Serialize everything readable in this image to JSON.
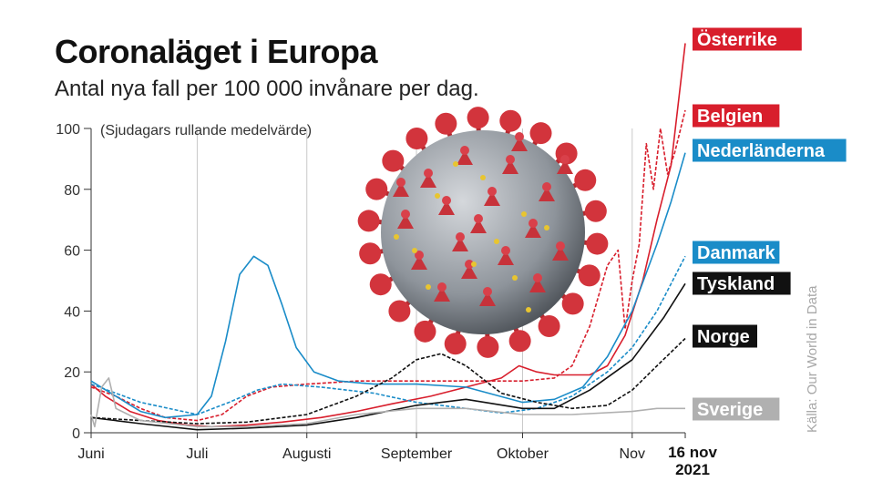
{
  "chart_data": {
    "type": "line",
    "title": "Coronaläget i Europa",
    "subtitle": "Antal nya fall per 100 000 invånare per dag.",
    "annotation": "(Sjudagars rullande medelvärde)",
    "source": "Källa: Our World in Data",
    "end_date": {
      "day": "16 nov",
      "year": "2021"
    },
    "x_ticks": [
      {
        "label": "Juni",
        "date": "2021-06-01"
      },
      {
        "label": "Juli",
        "date": "2021-07-01"
      },
      {
        "label": "Augusti",
        "date": "2021-08-01"
      },
      {
        "label": "September",
        "date": "2021-09-01"
      },
      {
        "label": "Oktober",
        "date": "2021-10-01"
      },
      {
        "label": "Nov",
        "date": "2021-11-01"
      }
    ],
    "y_ticks": [
      0,
      20,
      40,
      60,
      80,
      100
    ],
    "xlim": [
      "2021-06-01",
      "2021-11-16"
    ],
    "ylim": [
      0,
      100
    ],
    "grid": "vertical",
    "series": [
      {
        "name": "Österrike",
        "color": "#d81e2c",
        "dash": false,
        "points": [
          [
            "2021-06-01",
            16
          ],
          [
            "2021-06-05",
            12
          ],
          [
            "2021-06-12",
            7
          ],
          [
            "2021-06-20",
            4
          ],
          [
            "2021-06-28",
            2.5
          ],
          [
            "2021-07-05",
            2
          ],
          [
            "2021-07-15",
            2.5
          ],
          [
            "2021-07-25",
            3.5
          ],
          [
            "2021-08-05",
            5
          ],
          [
            "2021-08-15",
            7
          ],
          [
            "2021-08-25",
            9.5
          ],
          [
            "2021-09-05",
            12
          ],
          [
            "2021-09-15",
            15
          ],
          [
            "2021-09-25",
            18
          ],
          [
            "2021-09-30",
            22
          ],
          [
            "2021-10-05",
            20
          ],
          [
            "2021-10-10",
            19
          ],
          [
            "2021-10-20",
            19
          ],
          [
            "2021-10-25",
            22
          ],
          [
            "2021-10-30",
            32
          ],
          [
            "2021-11-04",
            50
          ],
          [
            "2021-11-08",
            70
          ],
          [
            "2021-11-12",
            88
          ],
          [
            "2021-11-16",
            128
          ]
        ]
      },
      {
        "name": "Belgien",
        "color": "#d81e2c",
        "dash": true,
        "points": [
          [
            "2021-06-01",
            15
          ],
          [
            "2021-06-08",
            12
          ],
          [
            "2021-06-15",
            8
          ],
          [
            "2021-06-22",
            5
          ],
          [
            "2021-07-01",
            4
          ],
          [
            "2021-07-08",
            6
          ],
          [
            "2021-07-15",
            12
          ],
          [
            "2021-07-22",
            15
          ],
          [
            "2021-08-01",
            16
          ],
          [
            "2021-08-15",
            17
          ],
          [
            "2021-09-01",
            17
          ],
          [
            "2021-09-15",
            17
          ],
          [
            "2021-10-01",
            17
          ],
          [
            "2021-10-10",
            18
          ],
          [
            "2021-10-15",
            22
          ],
          [
            "2021-10-20",
            35
          ],
          [
            "2021-10-25",
            55
          ],
          [
            "2021-10-28",
            60
          ],
          [
            "2021-10-30",
            34
          ],
          [
            "2021-11-01",
            50
          ],
          [
            "2021-11-03",
            62
          ],
          [
            "2021-11-05",
            95
          ],
          [
            "2021-11-07",
            80
          ],
          [
            "2021-11-09",
            100
          ],
          [
            "2021-11-11",
            85
          ],
          [
            "2021-11-13",
            92
          ],
          [
            "2021-11-16",
            106
          ]
        ]
      },
      {
        "name": "Nederländerna",
        "color": "#1a8cc8",
        "dash": false,
        "points": [
          [
            "2021-06-01",
            17
          ],
          [
            "2021-06-08",
            12
          ],
          [
            "2021-06-15",
            7
          ],
          [
            "2021-06-22",
            5
          ],
          [
            "2021-07-01",
            6
          ],
          [
            "2021-07-05",
            12
          ],
          [
            "2021-07-09",
            30
          ],
          [
            "2021-07-13",
            52
          ],
          [
            "2021-07-17",
            58
          ],
          [
            "2021-07-21",
            55
          ],
          [
            "2021-07-25",
            42
          ],
          [
            "2021-07-29",
            28
          ],
          [
            "2021-08-03",
            20
          ],
          [
            "2021-08-10",
            17
          ],
          [
            "2021-08-20",
            16
          ],
          [
            "2021-09-01",
            16
          ],
          [
            "2021-09-15",
            15
          ],
          [
            "2021-10-01",
            10
          ],
          [
            "2021-10-10",
            11
          ],
          [
            "2021-10-18",
            15
          ],
          [
            "2021-10-25",
            25
          ],
          [
            "2021-11-01",
            40
          ],
          [
            "2021-11-08",
            62
          ],
          [
            "2021-11-12",
            76
          ],
          [
            "2021-11-16",
            92
          ]
        ]
      },
      {
        "name": "Danmark",
        "color": "#1a8cc8",
        "dash": true,
        "points": [
          [
            "2021-06-01",
            16
          ],
          [
            "2021-06-15",
            10
          ],
          [
            "2021-07-01",
            6
          ],
          [
            "2021-07-10",
            10
          ],
          [
            "2021-07-18",
            14
          ],
          [
            "2021-07-25",
            16
          ],
          [
            "2021-08-05",
            15
          ],
          [
            "2021-08-20",
            13
          ],
          [
            "2021-09-01",
            10
          ],
          [
            "2021-09-15",
            8
          ],
          [
            "2021-09-25",
            6.5
          ],
          [
            "2021-10-05",
            8
          ],
          [
            "2021-10-15",
            12
          ],
          [
            "2021-10-25",
            20
          ],
          [
            "2021-11-01",
            28
          ],
          [
            "2021-11-08",
            40
          ],
          [
            "2021-11-16",
            58
          ]
        ]
      },
      {
        "name": "Tyskland",
        "color": "#111111",
        "dash": false,
        "points": [
          [
            "2021-06-01",
            5
          ],
          [
            "2021-06-15",
            3
          ],
          [
            "2021-07-01",
            1
          ],
          [
            "2021-07-15",
            1.5
          ],
          [
            "2021-08-01",
            2.5
          ],
          [
            "2021-08-15",
            5
          ],
          [
            "2021-09-01",
            9
          ],
          [
            "2021-09-15",
            11
          ],
          [
            "2021-10-01",
            8
          ],
          [
            "2021-10-10",
            8
          ],
          [
            "2021-10-20",
            14
          ],
          [
            "2021-11-01",
            24
          ],
          [
            "2021-11-10",
            38
          ],
          [
            "2021-11-16",
            49
          ]
        ]
      },
      {
        "name": "Norge",
        "color": "#111111",
        "dash": true,
        "points": [
          [
            "2021-06-01",
            5
          ],
          [
            "2021-06-15",
            4
          ],
          [
            "2021-07-01",
            3
          ],
          [
            "2021-07-15",
            3.5
          ],
          [
            "2021-08-01",
            6
          ],
          [
            "2021-08-15",
            12
          ],
          [
            "2021-08-25",
            18
          ],
          [
            "2021-09-01",
            24
          ],
          [
            "2021-09-08",
            26
          ],
          [
            "2021-09-15",
            22
          ],
          [
            "2021-09-25",
            13
          ],
          [
            "2021-10-05",
            10
          ],
          [
            "2021-10-15",
            8
          ],
          [
            "2021-10-25",
            9
          ],
          [
            "2021-11-01",
            14
          ],
          [
            "2021-11-08",
            22
          ],
          [
            "2021-11-16",
            31
          ]
        ]
      },
      {
        "name": "Sverige",
        "color": "#b0b0b0",
        "dash": false,
        "points": [
          [
            "2021-06-01",
            6
          ],
          [
            "2021-06-02",
            2
          ],
          [
            "2021-06-04",
            15
          ],
          [
            "2021-06-06",
            18
          ],
          [
            "2021-06-08",
            8
          ],
          [
            "2021-06-15",
            4
          ],
          [
            "2021-07-01",
            2
          ],
          [
            "2021-07-15",
            2
          ],
          [
            "2021-08-01",
            3
          ],
          [
            "2021-08-15",
            6
          ],
          [
            "2021-09-01",
            8
          ],
          [
            "2021-09-15",
            8
          ],
          [
            "2021-10-01",
            6
          ],
          [
            "2021-10-15",
            6
          ],
          [
            "2021-11-01",
            7
          ],
          [
            "2021-11-08",
            8
          ],
          [
            "2021-11-16",
            8
          ]
        ]
      }
    ],
    "labels": [
      {
        "series": "Österrike",
        "text": "Österrike",
        "bg": "#d81e2c",
        "fg": "#ffffff"
      },
      {
        "series": "Belgien",
        "text": "Belgien",
        "bg": "#d81e2c",
        "fg": "#ffffff"
      },
      {
        "series": "Nederländerna",
        "text": "Nederländerna",
        "bg": "#1a8cc8",
        "fg": "#ffffff"
      },
      {
        "series": "Danmark",
        "text": "Danmark",
        "bg": "#1a8cc8",
        "fg": "#ffffff"
      },
      {
        "series": "Tyskland",
        "text": "Tyskland",
        "bg": "#111111",
        "fg": "#ffffff"
      },
      {
        "series": "Norge",
        "text": "Norge",
        "bg": "#111111",
        "fg": "#ffffff"
      },
      {
        "series": "Sverige",
        "text": "Sverige",
        "bg": "#b0b0b0",
        "fg": "#ffffff"
      }
    ],
    "illustration": "coronavirus-icon"
  }
}
